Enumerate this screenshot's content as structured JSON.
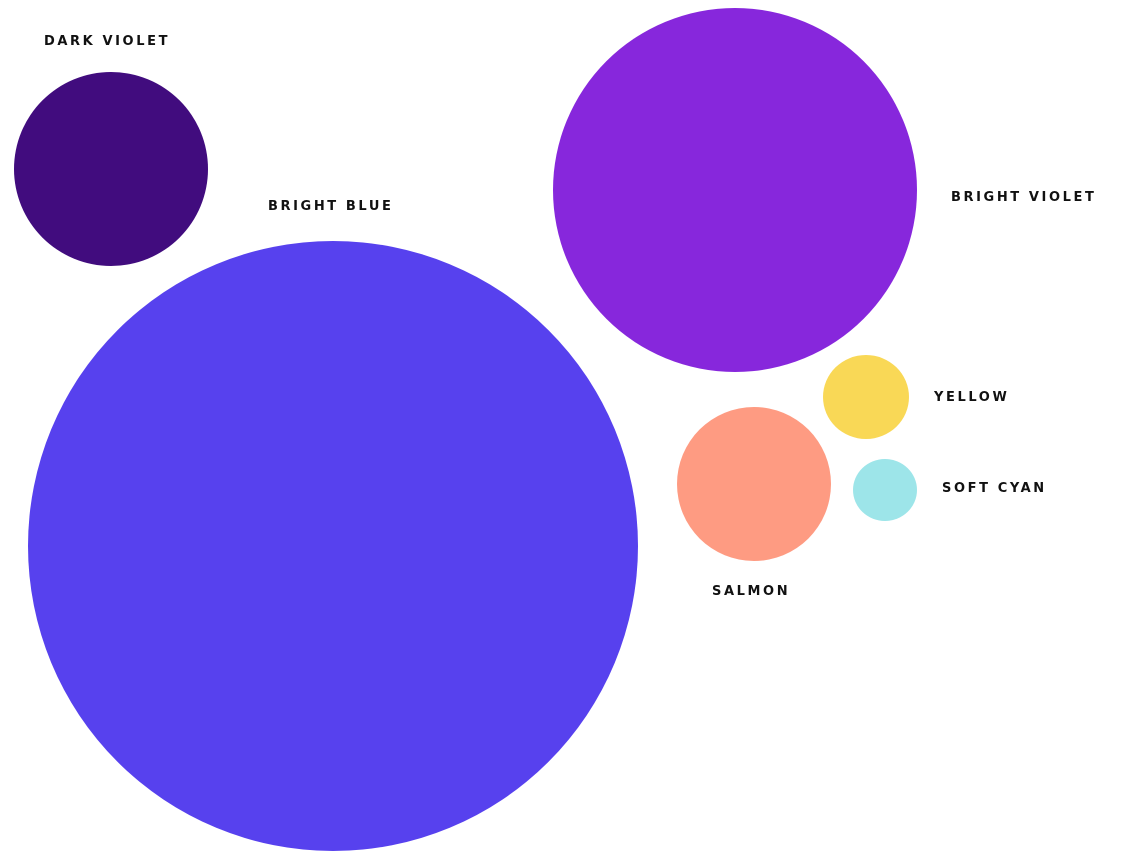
{
  "swatches": {
    "dark_violet": {
      "label": "DARK VIOLET",
      "color": "#410C7E"
    },
    "bright_blue": {
      "label": "BRIGHT BLUE",
      "color": "#5741EE"
    },
    "bright_violet": {
      "label": "BRIGHT VIOLET",
      "color": "#8727DC"
    },
    "yellow": {
      "label": "YELLOW",
      "color": "#F9D856"
    },
    "salmon": {
      "label": "SALMON",
      "color": "#FE9B82"
    },
    "soft_cyan": {
      "label": "SOFT CYAN",
      "color": "#9DE5E9"
    }
  }
}
